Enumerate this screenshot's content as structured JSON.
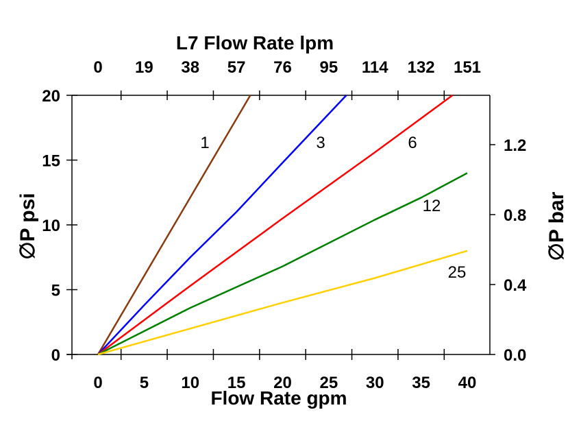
{
  "chart_data": {
    "type": "line",
    "title": "",
    "xlabel": "Flow Rate gpm",
    "ylabel": "∅P psi",
    "x2label": "L7 Flow Rate lpm",
    "y2label": "∅P bar",
    "xlim": [
      -5.5,
      42
    ],
    "ylim": [
      0,
      20
    ],
    "xticks": [
      "0",
      "5",
      "10",
      "15",
      "20",
      "25",
      "30",
      "35",
      "40"
    ],
    "yticks": [
      "0",
      "5",
      "10",
      "15",
      "20"
    ],
    "x2ticks": [
      "0",
      "19",
      "38",
      "57",
      "76",
      "95",
      "114",
      "132",
      "151"
    ],
    "y2ticks": [
      "0.0",
      "0.4",
      "0.8",
      "1.2"
    ],
    "grid": false,
    "series": [
      {
        "name": "1",
        "color": "#8B3A0E",
        "x": [
          0,
          16.5
        ],
        "y": [
          0,
          20
        ]
      },
      {
        "name": "3",
        "color": "#0000FF",
        "x": [
          0,
          5,
          10,
          15,
          20,
          26.9
        ],
        "y": [
          0,
          3.8,
          7.5,
          11,
          14.8,
          20
        ]
      },
      {
        "name": "6",
        "color": "#FF0000",
        "x": [
          0,
          10,
          20,
          30,
          38.4
        ],
        "y": [
          0,
          5.3,
          10.5,
          15.6,
          20
        ]
      },
      {
        "name": "12",
        "color": "#008000",
        "x": [
          0,
          5,
          10,
          20,
          30,
          35,
          40
        ],
        "y": [
          0,
          1.8,
          3.6,
          6.8,
          10.4,
          12.1,
          14.0
        ]
      },
      {
        "name": "25",
        "color": "#FFD000",
        "x": [
          0,
          10,
          20,
          30,
          40
        ],
        "y": [
          0,
          2,
          4,
          5.9,
          8.0
        ]
      }
    ]
  }
}
